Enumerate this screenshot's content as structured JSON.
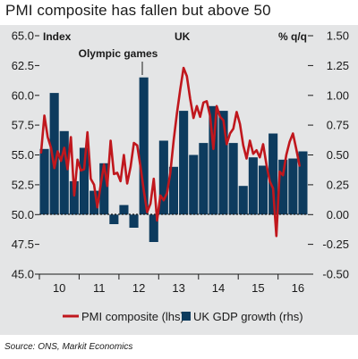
{
  "title": "PMI composite has fallen but above 50",
  "source": "Source: ONS, Markit Economics",
  "chart_data": {
    "type": "bar+line",
    "left_header": "Index",
    "center_header": "UK",
    "right_header": "% q/q",
    "annotation": "Olympic games",
    "left_axis": {
      "ylim": [
        45.0,
        65.0
      ],
      "ticks": [
        "65.0",
        "62.5",
        "60.0",
        "57.5",
        "55.0",
        "52.5",
        "50.0",
        "47.5",
        "45.0"
      ]
    },
    "right_axis": {
      "ylim": [
        -0.5,
        1.5
      ],
      "ticks": [
        "1.50",
        "1.25",
        "1.00",
        "0.75",
        "0.50",
        "0.25",
        "0.00",
        "-0.25",
        "-0.50"
      ]
    },
    "x_ticks": [
      "10",
      "11",
      "12",
      "13",
      "14",
      "15",
      "16"
    ],
    "legend": {
      "pmi": "PMI composite (lhs)",
      "gdp": "UK GDP growth (rhs)"
    },
    "colors": {
      "pmi": "#c0171d",
      "gdp": "#0d3b5e",
      "panel": "#e4e5e6"
    },
    "gdp_quarters": [
      "2010Q1",
      "2010Q2",
      "2010Q3",
      "2010Q4",
      "2011Q1",
      "2011Q2",
      "2011Q3",
      "2011Q4",
      "2012Q1",
      "2012Q2",
      "2012Q3",
      "2012Q4",
      "2013Q1",
      "2013Q2",
      "2013Q3",
      "2013Q4",
      "2014Q1",
      "2014Q2",
      "2014Q3",
      "2014Q4",
      "2015Q1",
      "2015Q2",
      "2015Q3",
      "2015Q4",
      "2016Q1",
      "2016Q2",
      "2016Q3"
    ],
    "gdp_values": [
      0.55,
      1.02,
      0.7,
      0.28,
      0.56,
      0.2,
      0.43,
      -0.08,
      0.08,
      -0.11,
      1.15,
      -0.23,
      0.62,
      0.4,
      0.87,
      0.5,
      0.6,
      0.91,
      0.87,
      0.6,
      0.24,
      0.48,
      0.41,
      0.68,
      0.46,
      0.47,
      0.53
    ],
    "pmi_start": "2010-01",
    "pmi_values": [
      55.2,
      58.3,
      56.5,
      55.6,
      53.9,
      55.3,
      54.5,
      55.6,
      53.8,
      56.5,
      51.6,
      54.6,
      53.7,
      53.8,
      56.9,
      53.0,
      52.5,
      50.6,
      52.5,
      54.2,
      52.4,
      56.2,
      53.4,
      53.5,
      52.8,
      55.0,
      52.6,
      54.0,
      56.0,
      55.8,
      54.0,
      52.0,
      50.2,
      50.9,
      53.0,
      49.5,
      51.6,
      51.2,
      51.8,
      53.5,
      56.2,
      58.5,
      60.5,
      62.3,
      61.6,
      59.7,
      58.1,
      59.1,
      58.2,
      59.4,
      59.5,
      58.3,
      55.5,
      59.1,
      58.2,
      57.9,
      55.9,
      56.8,
      57.2,
      58.6,
      57.6,
      55.8,
      54.7,
      56.2,
      55.1,
      55.4,
      54.8,
      55.9,
      54.2,
      52.8,
      52.2,
      48.2,
      53.6,
      53.3,
      55.0,
      56.1,
      56.8,
      55.5,
      54.1
    ]
  }
}
